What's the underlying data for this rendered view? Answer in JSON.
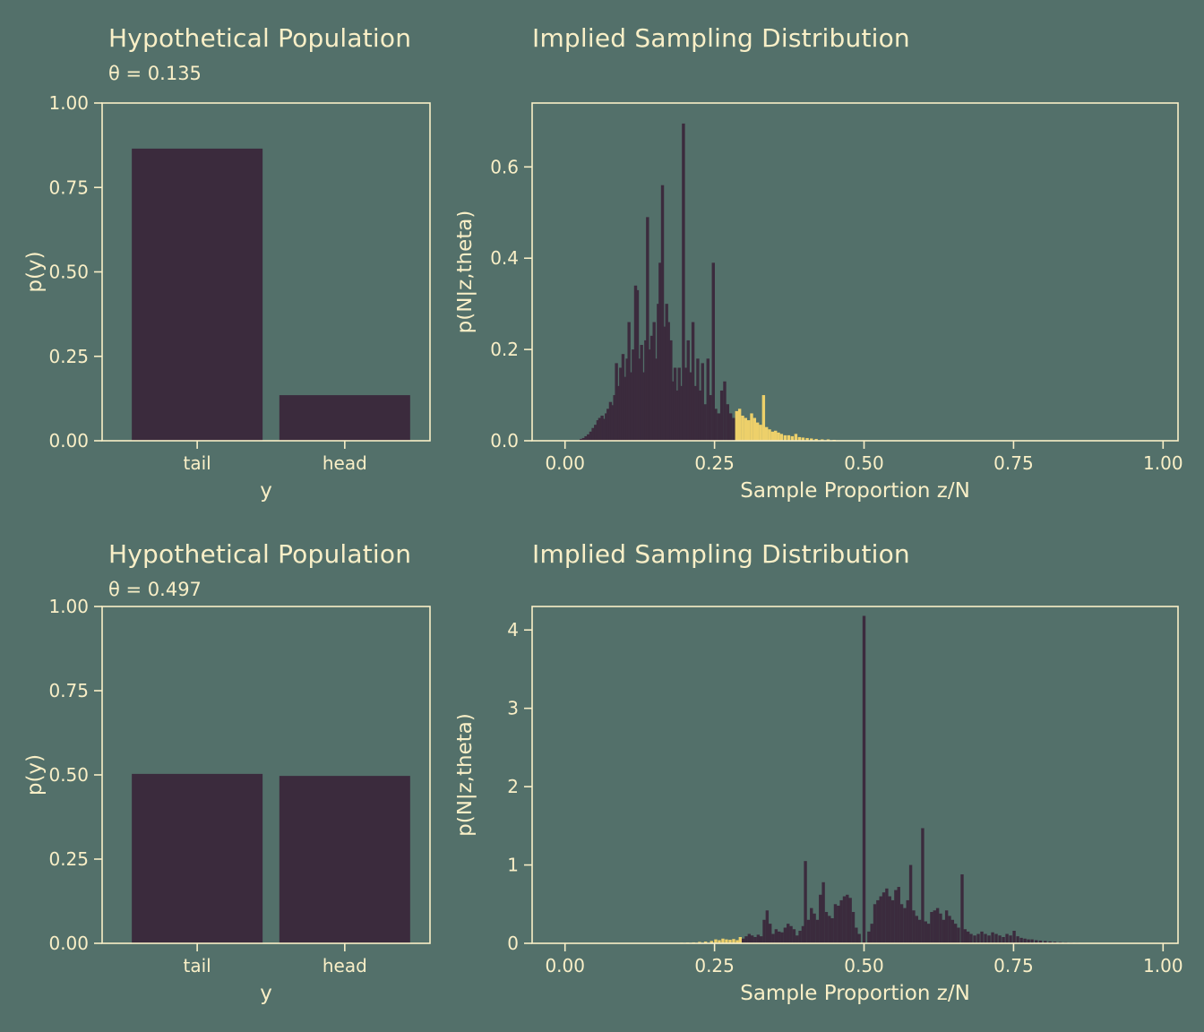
{
  "page": {
    "bg_color": "#53706a",
    "text_color": "#f9efc7",
    "bar_color": "#3b2b3d",
    "highlight_color": "#edd06a"
  },
  "chart_data": [
    {
      "id": "top-left",
      "type": "bar",
      "title": "Hypothetical Population",
      "subtitle": "θ = 0.135",
      "xlabel": "y",
      "ylabel": "p(y)",
      "categories": [
        "tail",
        "head"
      ],
      "values": [
        0.865,
        0.135
      ],
      "ylim": [
        0,
        1.0
      ],
      "ytick_values": [
        0,
        0.25,
        0.5,
        0.75,
        1.0
      ],
      "ytick_labels": [
        "0.00",
        "0.25",
        "0.50",
        "0.75",
        "1.00"
      ],
      "grid": false,
      "legend": "none"
    },
    {
      "id": "top-right",
      "type": "histogram",
      "title": "Implied Sampling Distribution",
      "subtitle": "",
      "xlabel": "Sample Proportion z/N",
      "ylabel": "p(N|z,theta)",
      "xlim": [
        -0.055,
        1.025
      ],
      "ylim": [
        0,
        0.74
      ],
      "xtick_values": [
        0,
        0.25,
        0.5,
        0.75,
        1.0
      ],
      "xtick_labels": [
        "0.00",
        "0.25",
        "0.50",
        "0.75",
        "1.00"
      ],
      "ytick_values": [
        0,
        0.2,
        0.4,
        0.6
      ],
      "ytick_labels": [
        "0.0",
        "0.2",
        "0.4",
        "0.6"
      ],
      "highlight": {
        "from": 0.285
      },
      "grid": false,
      "legend": "none",
      "bars": [
        [
          0.027,
          0.004
        ],
        [
          0.031,
          0.006
        ],
        [
          0.035,
          0.01
        ],
        [
          0.039,
          0.014
        ],
        [
          0.043,
          0.02
        ],
        [
          0.047,
          0.028
        ],
        [
          0.051,
          0.035
        ],
        [
          0.055,
          0.045
        ],
        [
          0.058,
          0.05
        ],
        [
          0.062,
          0.055
        ],
        [
          0.065,
          0.048
        ],
        [
          0.069,
          0.06
        ],
        [
          0.072,
          0.07
        ],
        [
          0.076,
          0.085
        ],
        [
          0.079,
          0.078
        ],
        [
          0.083,
          0.1
        ],
        [
          0.086,
          0.17
        ],
        [
          0.09,
          0.12
        ],
        [
          0.093,
          0.16
        ],
        [
          0.097,
          0.19
        ],
        [
          0.1,
          0.14
        ],
        [
          0.104,
          0.18
        ],
        [
          0.107,
          0.26
        ],
        [
          0.111,
          0.15
        ],
        [
          0.114,
          0.2
        ],
        [
          0.118,
          0.34
        ],
        [
          0.121,
          0.33
        ],
        [
          0.125,
          0.18
        ],
        [
          0.128,
          0.21
        ],
        [
          0.132,
          0.15
        ],
        [
          0.135,
          0.22
        ],
        [
          0.138,
          0.49
        ],
        [
          0.142,
          0.2
        ],
        [
          0.145,
          0.23
        ],
        [
          0.149,
          0.26
        ],
        [
          0.152,
          0.18
        ],
        [
          0.156,
          0.3
        ],
        [
          0.159,
          0.39
        ],
        [
          0.163,
          0.56
        ],
        [
          0.166,
          0.25
        ],
        [
          0.17,
          0.3
        ],
        [
          0.173,
          0.26
        ],
        [
          0.177,
          0.22
        ],
        [
          0.18,
          0.13
        ],
        [
          0.184,
          0.16
        ],
        [
          0.187,
          0.11
        ],
        [
          0.191,
          0.16
        ],
        [
          0.194,
          0.12
        ],
        [
          0.198,
          0.695
        ],
        [
          0.202,
          0.16
        ],
        [
          0.206,
          0.22
        ],
        [
          0.21,
          0.15
        ],
        [
          0.214,
          0.26
        ],
        [
          0.218,
          0.12
        ],
        [
          0.222,
          0.18
        ],
        [
          0.226,
          0.11
        ],
        [
          0.23,
          0.17
        ],
        [
          0.234,
          0.08
        ],
        [
          0.239,
          0.18
        ],
        [
          0.243,
          0.1
        ],
        [
          0.248,
          0.39
        ],
        [
          0.252,
          0.07
        ],
        [
          0.257,
          0.06
        ],
        [
          0.262,
          0.11
        ],
        [
          0.267,
          0.13
        ],
        [
          0.272,
          0.08
        ],
        [
          0.277,
          0.06
        ],
        [
          0.282,
          0.05
        ],
        [
          0.287,
          0.065
        ],
        [
          0.292,
          0.07
        ],
        [
          0.297,
          0.055
        ],
        [
          0.302,
          0.05
        ],
        [
          0.307,
          0.045
        ],
        [
          0.312,
          0.06
        ],
        [
          0.317,
          0.05
        ],
        [
          0.322,
          0.04
        ],
        [
          0.327,
          0.035
        ],
        [
          0.332,
          0.1
        ],
        [
          0.337,
          0.03
        ],
        [
          0.342,
          0.025
        ],
        [
          0.347,
          0.02
        ],
        [
          0.352,
          0.022
        ],
        [
          0.357,
          0.018
        ],
        [
          0.362,
          0.015
        ],
        [
          0.368,
          0.012
        ],
        [
          0.374,
          0.012
        ],
        [
          0.38,
          0.01
        ],
        [
          0.386,
          0.015
        ],
        [
          0.392,
          0.008
        ],
        [
          0.398,
          0.007
        ],
        [
          0.405,
          0.006
        ],
        [
          0.412,
          0.005
        ],
        [
          0.42,
          0.004
        ],
        [
          0.43,
          0.003
        ],
        [
          0.44,
          0.003
        ],
        [
          0.45,
          0.002
        ]
      ]
    },
    {
      "id": "bottom-left",
      "type": "bar",
      "title": "Hypothetical Population",
      "subtitle": "θ = 0.497",
      "xlabel": "y",
      "ylabel": "p(y)",
      "categories": [
        "tail",
        "head"
      ],
      "values": [
        0.503,
        0.497
      ],
      "ylim": [
        0,
        1.0
      ],
      "ytick_values": [
        0,
        0.25,
        0.5,
        0.75,
        1.0
      ],
      "ytick_labels": [
        "0.00",
        "0.25",
        "0.50",
        "0.75",
        "1.00"
      ],
      "grid": false,
      "legend": "none"
    },
    {
      "id": "bottom-right",
      "type": "histogram",
      "title": "Implied Sampling Distribution",
      "subtitle": "",
      "xlabel": "Sample Proportion z/N",
      "ylabel": "p(N|z,theta)",
      "xlim": [
        -0.055,
        1.025
      ],
      "ylim": [
        0,
        4.3
      ],
      "xtick_values": [
        0,
        0.25,
        0.5,
        0.75,
        1.0
      ],
      "xtick_labels": [
        "0.00",
        "0.25",
        "0.50",
        "0.75",
        "1.00"
      ],
      "ytick_values": [
        0,
        1,
        2,
        3,
        4
      ],
      "ytick_labels": [
        "0",
        "1",
        "2",
        "3",
        "4"
      ],
      "highlight": {
        "to": 0.295
      },
      "grid": false,
      "legend": "none",
      "bars": [
        [
          0.195,
          0.008
        ],
        [
          0.205,
          0.01
        ],
        [
          0.215,
          0.012
        ],
        [
          0.225,
          0.018
        ],
        [
          0.235,
          0.022
        ],
        [
          0.245,
          0.03
        ],
        [
          0.252,
          0.05
        ],
        [
          0.258,
          0.04
        ],
        [
          0.264,
          0.06
        ],
        [
          0.27,
          0.05
        ],
        [
          0.276,
          0.045
        ],
        [
          0.282,
          0.055
        ],
        [
          0.288,
          0.04
        ],
        [
          0.293,
          0.08
        ],
        [
          0.298,
          0.06
        ],
        [
          0.303,
          0.09
        ],
        [
          0.308,
          0.12
        ],
        [
          0.313,
          0.1
        ],
        [
          0.318,
          0.08
        ],
        [
          0.323,
          0.11
        ],
        [
          0.328,
          0.09
        ],
        [
          0.333,
          0.3
        ],
        [
          0.338,
          0.42
        ],
        [
          0.343,
          0.25
        ],
        [
          0.348,
          0.12
        ],
        [
          0.353,
          0.18
        ],
        [
          0.358,
          0.15
        ],
        [
          0.363,
          0.14
        ],
        [
          0.368,
          0.2
        ],
        [
          0.373,
          0.25
        ],
        [
          0.378,
          0.22
        ],
        [
          0.383,
          0.18
        ],
        [
          0.388,
          0.1
        ],
        [
          0.393,
          0.16
        ],
        [
          0.398,
          0.22
        ],
        [
          0.402,
          1.05
        ],
        [
          0.407,
          0.3
        ],
        [
          0.412,
          0.45
        ],
        [
          0.417,
          0.38
        ],
        [
          0.422,
          0.3
        ],
        [
          0.427,
          0.62
        ],
        [
          0.432,
          0.78
        ],
        [
          0.437,
          0.4
        ],
        [
          0.442,
          0.35
        ],
        [
          0.447,
          0.32
        ],
        [
          0.452,
          0.5
        ],
        [
          0.457,
          0.48
        ],
        [
          0.462,
          0.55
        ],
        [
          0.467,
          0.6
        ],
        [
          0.472,
          0.62
        ],
        [
          0.477,
          0.58
        ],
        [
          0.482,
          0.4
        ],
        [
          0.487,
          0.2
        ],
        [
          0.492,
          0.12
        ],
        [
          0.5,
          4.18
        ],
        [
          0.508,
          0.15
        ],
        [
          0.513,
          0.25
        ],
        [
          0.518,
          0.5
        ],
        [
          0.523,
          0.55
        ],
        [
          0.528,
          0.6
        ],
        [
          0.533,
          0.65
        ],
        [
          0.538,
          0.7
        ],
        [
          0.543,
          0.6
        ],
        [
          0.548,
          0.55
        ],
        [
          0.553,
          0.68
        ],
        [
          0.558,
          0.72
        ],
        [
          0.563,
          0.5
        ],
        [
          0.568,
          0.45
        ],
        [
          0.573,
          0.55
        ],
        [
          0.578,
          1.0
        ],
        [
          0.583,
          0.42
        ],
        [
          0.588,
          0.35
        ],
        [
          0.593,
          0.3
        ],
        [
          0.598,
          1.47
        ],
        [
          0.603,
          0.28
        ],
        [
          0.608,
          0.25
        ],
        [
          0.613,
          0.4
        ],
        [
          0.618,
          0.42
        ],
        [
          0.623,
          0.45
        ],
        [
          0.628,
          0.38
        ],
        [
          0.633,
          0.3
        ],
        [
          0.638,
          0.42
        ],
        [
          0.643,
          0.35
        ],
        [
          0.648,
          0.3
        ],
        [
          0.653,
          0.25
        ],
        [
          0.658,
          0.2
        ],
        [
          0.664,
          0.88
        ],
        [
          0.669,
          0.18
        ],
        [
          0.674,
          0.15
        ],
        [
          0.679,
          0.12
        ],
        [
          0.685,
          0.1
        ],
        [
          0.691,
          0.12
        ],
        [
          0.697,
          0.15
        ],
        [
          0.703,
          0.12
        ],
        [
          0.709,
          0.1
        ],
        [
          0.715,
          0.14
        ],
        [
          0.721,
          0.12
        ],
        [
          0.727,
          0.1
        ],
        [
          0.733,
          0.08
        ],
        [
          0.739,
          0.12
        ],
        [
          0.745,
          0.1
        ],
        [
          0.751,
          0.16
        ],
        [
          0.757,
          0.09
        ],
        [
          0.763,
          0.07
        ],
        [
          0.769,
          0.06
        ],
        [
          0.775,
          0.05
        ],
        [
          0.781,
          0.05
        ],
        [
          0.788,
          0.04
        ],
        [
          0.795,
          0.035
        ],
        [
          0.803,
          0.03
        ],
        [
          0.811,
          0.025
        ],
        [
          0.819,
          0.02
        ],
        [
          0.828,
          0.016
        ],
        [
          0.837,
          0.013
        ],
        [
          0.846,
          0.01
        ],
        [
          0.856,
          0.008
        ],
        [
          0.867,
          0.006
        ],
        [
          0.878,
          0.005
        ],
        [
          0.89,
          0.004
        ]
      ]
    }
  ]
}
